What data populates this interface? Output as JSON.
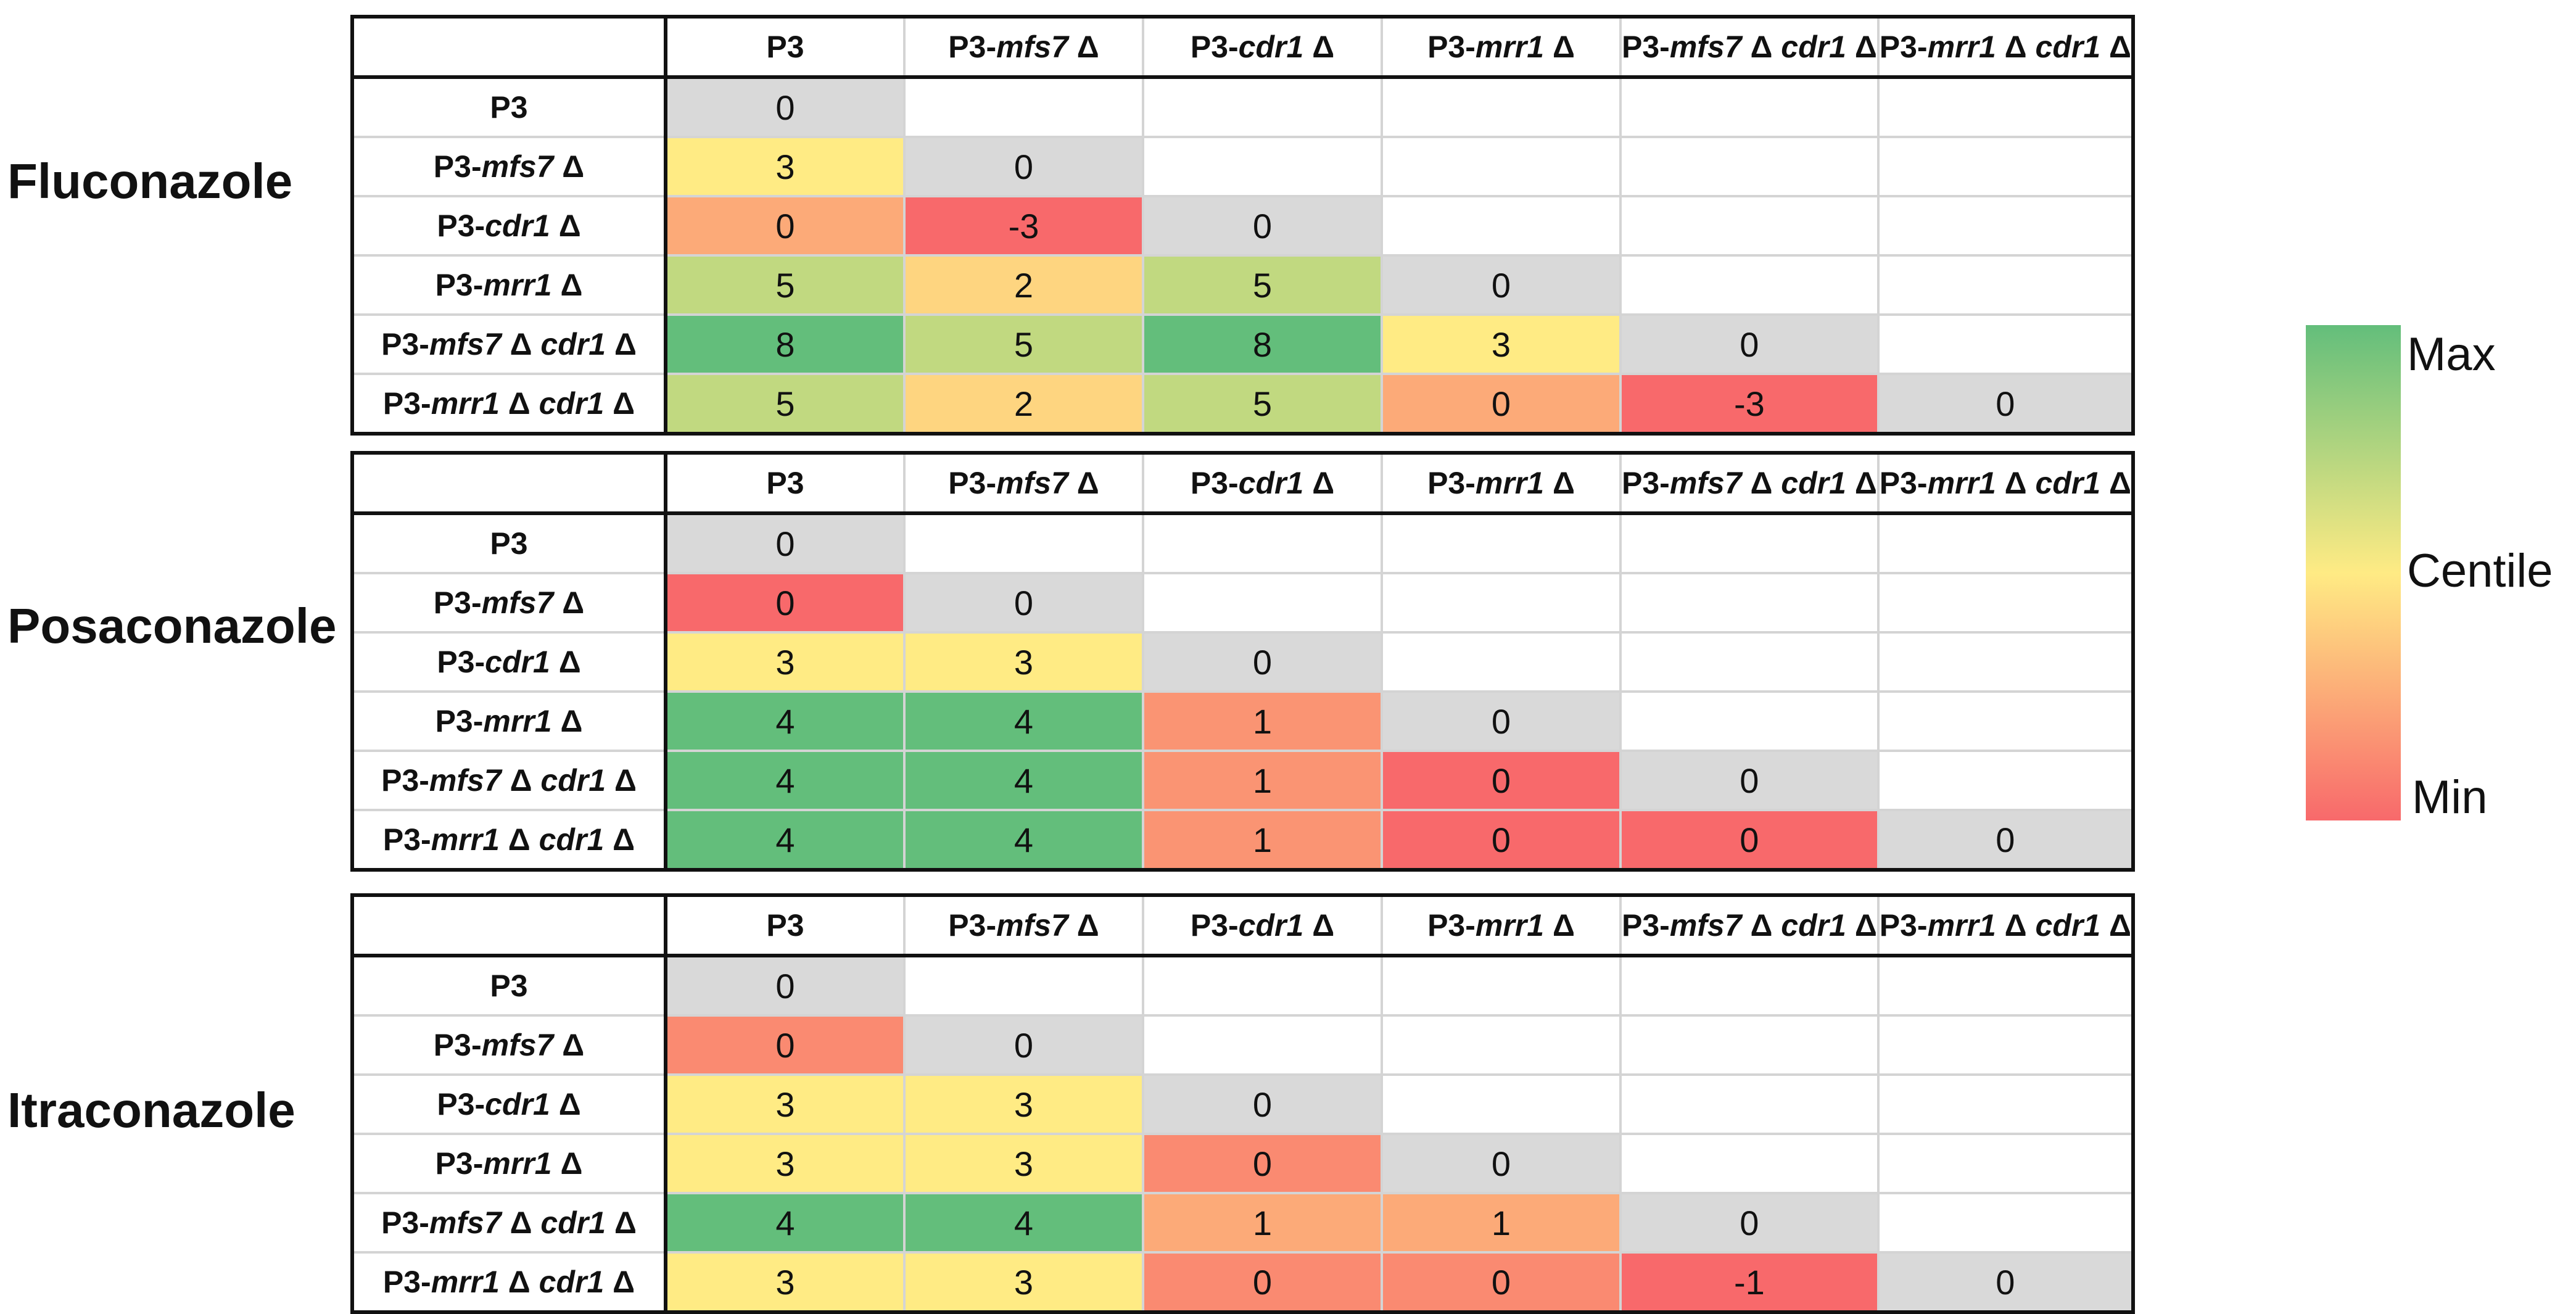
{
  "chart_data": {
    "type": "heatmap",
    "colors": {
      "max": "#63be7b",
      "centile": "#ffeb84",
      "min": "#f8696b",
      "diagonal": "#d9d9d9"
    },
    "legend": {
      "max": "Max",
      "centile": "Centile",
      "min": "Min"
    },
    "strains": [
      {
        "prefix": "P3",
        "parts": []
      },
      {
        "prefix": "P3-",
        "parts": [
          "mfs7"
        ]
      },
      {
        "prefix": "P3-",
        "parts": [
          "cdr1"
        ]
      },
      {
        "prefix": "P3-",
        "parts": [
          "mrr1"
        ]
      },
      {
        "prefix": "P3-",
        "parts": [
          "mfs7",
          "cdr1"
        ]
      },
      {
        "prefix": "P3-",
        "parts": [
          "mrr1",
          "cdr1"
        ]
      }
    ],
    "delta_symbol": "Δ",
    "panels": [
      {
        "drug": "Fluconazole",
        "rows": [
          [
            0
          ],
          [
            3,
            0
          ],
          [
            0,
            -3,
            0
          ],
          [
            5,
            2,
            5,
            0
          ],
          [
            8,
            5,
            8,
            3,
            0
          ],
          [
            5,
            2,
            5,
            0,
            -3,
            0
          ]
        ]
      },
      {
        "drug": "Posaconazole",
        "rows": [
          [
            0
          ],
          [
            0,
            0
          ],
          [
            3,
            3,
            0
          ],
          [
            4,
            4,
            1,
            0
          ],
          [
            4,
            4,
            1,
            0,
            0
          ],
          [
            4,
            4,
            1,
            0,
            0,
            0
          ]
        ]
      },
      {
        "drug": "Itraconazole",
        "rows": [
          [
            0
          ],
          [
            0,
            0
          ],
          [
            3,
            3,
            0
          ],
          [
            3,
            3,
            0,
            0
          ],
          [
            4,
            4,
            1,
            1,
            0
          ],
          [
            3,
            3,
            0,
            0,
            -1,
            0
          ]
        ]
      }
    ]
  }
}
